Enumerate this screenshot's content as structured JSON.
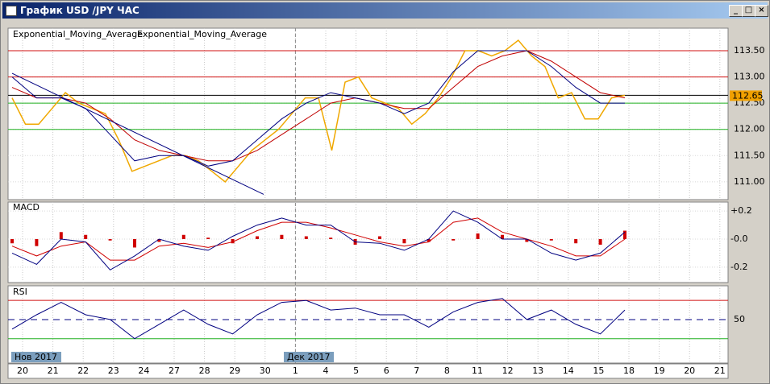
{
  "window": {
    "title": "График USD /JPY ЧАС"
  },
  "main_panel": {
    "legend": [
      "Exponential_Moving_Average",
      "Exponential_Moving_Average"
    ],
    "ylim": [
      110.66,
      113.93
    ],
    "yticks": [
      {
        "value": 111,
        "label": "111.00"
      },
      {
        "value": 111.5,
        "label": "111.50"
      },
      {
        "value": 112,
        "label": "112.00"
      },
      {
        "value": 112.5,
        "label": "112.50"
      },
      {
        "value": 113,
        "label": "113.00"
      },
      {
        "value": 113.5,
        "label": "113.50"
      }
    ],
    "red_levels": [
      113.5,
      113
    ],
    "green_levels": [
      112.5,
      112
    ],
    "current_price": {
      "value": 112.65,
      "label": "112.65"
    },
    "price": [
      112.6,
      112.1,
      112.1,
      112.4,
      112.7,
      112.5,
      112.4,
      112.3,
      111.8,
      111.2,
      111.3,
      111.4,
      111.5,
      111.5,
      111.4,
      111.2,
      111.0,
      111.3,
      111.6,
      111.8,
      112.0,
      112.3,
      112.6,
      112.6,
      111.6,
      112.9,
      113.0,
      112.6,
      112.5,
      112.4,
      112.1,
      112.3,
      112.6,
      113.0,
      113.5,
      113.5,
      113.4,
      113.5,
      113.7,
      113.4,
      113.2,
      112.6,
      112.7,
      112.2,
      112.2,
      112.6,
      112.65
    ],
    "ema_fast": [
      113.0,
      112.6,
      112.6,
      112.4,
      111.9,
      111.4,
      111.5,
      111.5,
      111.3,
      111.4,
      111.8,
      112.2,
      112.5,
      112.7,
      112.6,
      112.5,
      112.3,
      112.5,
      113.1,
      113.5,
      113.5,
      113.5,
      113.2,
      112.8,
      112.5,
      112.5
    ],
    "ema_slow": [
      112.8,
      112.6,
      112.6,
      112.5,
      112.2,
      111.8,
      111.6,
      111.5,
      111.4,
      111.4,
      111.6,
      111.9,
      112.2,
      112.5,
      112.6,
      112.5,
      112.4,
      112.4,
      112.8,
      113.2,
      113.4,
      113.5,
      113.3,
      113.0,
      112.7,
      112.6
    ],
    "trendline": [
      113.07,
      110.76
    ]
  },
  "macd_panel": {
    "label": "MACD",
    "ylim": [
      -0.31,
      0.264
    ],
    "yticks": [
      {
        "value": 0.2,
        "label": "+0.2"
      },
      {
        "value": 0,
        "label": "-0.0"
      },
      {
        "value": -0.2,
        "label": "-0.2"
      }
    ],
    "macd": [
      -0.1,
      -0.18,
      0.0,
      -0.02,
      -0.22,
      -0.12,
      0.0,
      -0.05,
      -0.08,
      0.02,
      0.1,
      0.15,
      0.1,
      0.1,
      -0.02,
      -0.03,
      -0.08,
      0.0,
      0.2,
      0.12,
      0.0,
      0.0,
      -0.1,
      -0.15,
      -0.1,
      0.05
    ],
    "signal": [
      -0.05,
      -0.12,
      -0.05,
      -0.02,
      -0.15,
      -0.15,
      -0.05,
      -0.03,
      -0.06,
      -0.02,
      0.06,
      0.12,
      0.12,
      0.08,
      0.03,
      -0.02,
      -0.05,
      -0.02,
      0.12,
      0.15,
      0.05,
      0.0,
      -0.05,
      -0.12,
      -0.12,
      0.0
    ],
    "histogram": [
      -0.03,
      -0.05,
      0.05,
      0.03,
      -0.01,
      -0.06,
      -0.02,
      0.03,
      0.01,
      -0.03,
      0.02,
      0.03,
      0.02,
      0.01,
      -0.04,
      0.02,
      -0.03,
      -0.02,
      -0.01,
      0.04,
      0.03,
      -0.02,
      -0.01,
      -0.03,
      -0.04,
      0.06
    ]
  },
  "rsi_panel": {
    "label": "RSI",
    "ylim": [
      4.5,
      85.3
    ],
    "yticks": [
      50
    ],
    "upper": 70,
    "lower": 30,
    "rsi": [
      40,
      55,
      68,
      55,
      50,
      30,
      45,
      60,
      45,
      35,
      55,
      68,
      70,
      60,
      62,
      55,
      55,
      42,
      58,
      68,
      72,
      50,
      60,
      45,
      35,
      60
    ]
  },
  "x_axis": {
    "categories": [
      "20",
      "21",
      "22",
      "23",
      "24",
      "27",
      "28",
      "29",
      "30",
      "1",
      "4",
      "5",
      "6",
      "7",
      "8",
      "11",
      "12",
      "13",
      "14",
      "15",
      "18",
      "19",
      "20",
      "21"
    ],
    "months": [
      "Нов 2017",
      "Дек 2017"
    ]
  }
}
